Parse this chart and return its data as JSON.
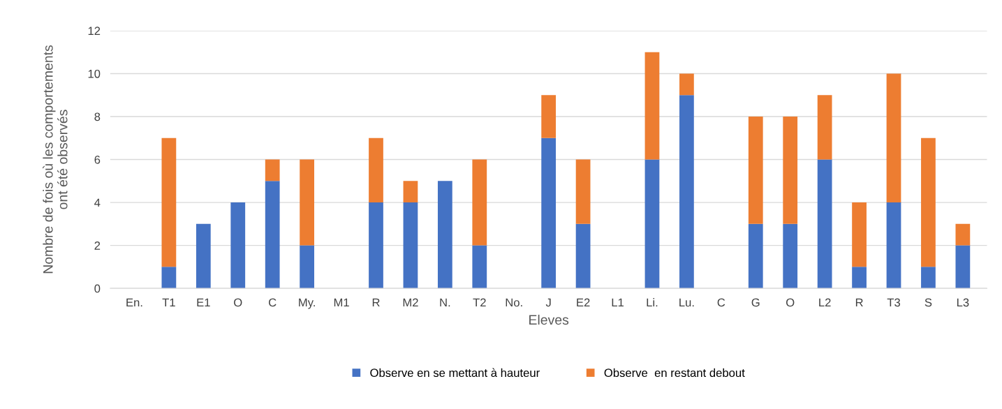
{
  "chart_data": {
    "type": "bar",
    "stacked": true,
    "xlabel": "Eleves",
    "ylabel": "Nombre de fois où les comportements\nont été observés",
    "categories": [
      "En.",
      "T1",
      "E1",
      "O",
      "C",
      "My.",
      "M1",
      "R",
      "M2",
      "N.",
      "T2",
      "No.",
      "J",
      "E2",
      "L1",
      "Li.",
      "Lu.",
      "C",
      "G",
      "O",
      "L2",
      "R",
      "T3",
      "S",
      "L3"
    ],
    "series": [
      {
        "name": "Observe en se mettant à hauteur",
        "color": "#4472c4",
        "values": [
          0,
          1,
          3,
          4,
          5,
          2,
          0,
          4,
          4,
          5,
          2,
          0,
          7,
          3,
          0,
          6,
          9,
          0,
          3,
          3,
          6,
          1,
          4,
          1,
          2
        ]
      },
      {
        "name": "Observe  en restant debout",
        "color": "#ed7d31",
        "values": [
          0,
          6,
          0,
          0,
          1,
          4,
          0,
          3,
          1,
          0,
          4,
          0,
          2,
          3,
          0,
          5,
          1,
          0,
          5,
          5,
          3,
          3,
          6,
          6,
          1
        ]
      }
    ],
    "ylim": [
      0,
      12
    ],
    "yticks": [
      0,
      2,
      4,
      6,
      8,
      10,
      12
    ],
    "grid": "y",
    "legend": "bottom"
  }
}
